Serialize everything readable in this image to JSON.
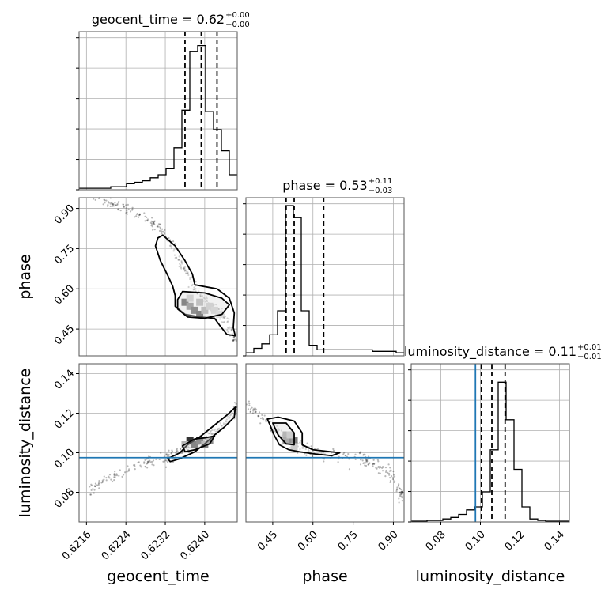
{
  "chart_data": {
    "type": "corner",
    "parameters": [
      {
        "name": "geocent_time",
        "axis_label": "geocent_time",
        "title": {
          "main": "geocent_time = 0.62",
          "sup": "+0.00",
          "sub": "−0.00"
        },
        "range": [
          0.62145,
          0.62466
        ],
        "ticks": [
          0.6216,
          0.6224,
          0.6232,
          0.624
        ],
        "tick_labels": [
          "0.6216",
          "0.6224",
          "0.6232",
          "0.6240"
        ],
        "quantiles": [
          0.6236,
          0.62393,
          0.62425
        ],
        "truth": null,
        "hist_max": 1.0,
        "hist": [
          0.01,
          0.01,
          0.01,
          0.01,
          0.02,
          0.02,
          0.04,
          0.05,
          0.06,
          0.08,
          0.1,
          0.14,
          0.28,
          0.53,
          0.92,
          0.96,
          0.52,
          0.4,
          0.26,
          0.1
        ]
      },
      {
        "name": "phase",
        "axis_label": "phase",
        "title": {
          "main": "phase = 0.53",
          "sup": "+0.11",
          "sub": "−0.03"
        },
        "range": [
          0.35,
          0.94
        ],
        "ticks": [
          0.45,
          0.6,
          0.75,
          0.9
        ],
        "tick_labels": [
          "0.45",
          "0.60",
          "0.75",
          "0.90"
        ],
        "quantiles": [
          0.5,
          0.53,
          0.64
        ],
        "truth": null,
        "hist_max": 1.0,
        "hist": [
          0.02,
          0.05,
          0.08,
          0.14,
          0.3,
          1.0,
          0.92,
          0.3,
          0.07,
          0.04,
          0.04,
          0.04,
          0.04,
          0.04,
          0.04,
          0.04,
          0.03,
          0.03,
          0.03,
          0.02
        ]
      },
      {
        "name": "luminosity_distance",
        "axis_label": "luminosity_distance",
        "title": {
          "main": "luminosity_distance = 0.11",
          "sup": "+0.01",
          "sub": "−0.01"
        },
        "range": [
          0.065,
          0.145
        ],
        "ticks": [
          0.08,
          0.1,
          0.12,
          0.14
        ],
        "tick_labels": [
          "0.08",
          "0.10",
          "0.12",
          "0.14"
        ],
        "quantiles": [
          0.1005,
          0.1058,
          0.1125
        ],
        "truth": 0.0975,
        "hist_max": 1.0,
        "hist": [
          0.005,
          0.005,
          0.01,
          0.01,
          0.02,
          0.03,
          0.05,
          0.08,
          0.1,
          0.2,
          0.48,
          0.93,
          0.68,
          0.35,
          0.1,
          0.02,
          0.01,
          0.005,
          0.005,
          0.005
        ]
      }
    ],
    "pairs": [
      {
        "x": "geocent_time",
        "y": "phase",
        "ridge": [
          [
            0.62175,
            0.94
          ],
          [
            0.62205,
            0.925
          ],
          [
            0.6222,
            0.91
          ],
          [
            0.6225,
            0.89
          ],
          [
            0.6228,
            0.865
          ],
          [
            0.623,
            0.84
          ],
          [
            0.62315,
            0.81
          ],
          [
            0.6233,
            0.77
          ],
          [
            0.62345,
            0.72
          ],
          [
            0.6236,
            0.67
          ],
          [
            0.62375,
            0.62
          ],
          [
            0.62395,
            0.57
          ],
          [
            0.6242,
            0.53
          ],
          [
            0.6244,
            0.49
          ],
          [
            0.62455,
            0.44
          ],
          [
            0.62463,
            0.4
          ]
        ],
        "spread": 0.018,
        "contour_outer": [
          [
            0.62315,
            0.8
          ],
          [
            0.6234,
            0.76
          ],
          [
            0.6236,
            0.705
          ],
          [
            0.62375,
            0.655
          ],
          [
            0.6238,
            0.615
          ],
          [
            0.62425,
            0.6
          ],
          [
            0.6245,
            0.565
          ],
          [
            0.6246,
            0.51
          ],
          [
            0.62458,
            0.455
          ],
          [
            0.62462,
            0.425
          ],
          [
            0.62445,
            0.43
          ],
          [
            0.6243,
            0.465
          ],
          [
            0.6242,
            0.49
          ],
          [
            0.6239,
            0.495
          ],
          [
            0.6236,
            0.505
          ],
          [
            0.6234,
            0.535
          ],
          [
            0.6234,
            0.575
          ],
          [
            0.62335,
            0.61
          ],
          [
            0.62325,
            0.65
          ],
          [
            0.6231,
            0.705
          ],
          [
            0.623,
            0.76
          ],
          [
            0.62305,
            0.79
          ]
        ],
        "contour_inner": [
          [
            0.62355,
            0.59
          ],
          [
            0.624,
            0.585
          ],
          [
            0.62435,
            0.565
          ],
          [
            0.6245,
            0.54
          ],
          [
            0.62435,
            0.505
          ],
          [
            0.624,
            0.49
          ],
          [
            0.62365,
            0.495
          ],
          [
            0.62345,
            0.525
          ],
          [
            0.62345,
            0.56
          ]
        ],
        "density_cells": [
          [
            0.6236,
            0.55,
            1.0
          ],
          [
            0.6237,
            0.535,
            0.7
          ],
          [
            0.6238,
            0.52,
            0.9
          ],
          [
            0.6239,
            0.505,
            1.0
          ],
          [
            0.624,
            0.52,
            0.5
          ],
          [
            0.6241,
            0.535,
            0.3
          ],
          [
            0.6242,
            0.52,
            0.25
          ],
          [
            0.6237,
            0.565,
            0.3
          ],
          [
            0.6239,
            0.55,
            0.45
          ],
          [
            0.6243,
            0.505,
            0.2
          ]
        ],
        "truth_x": null,
        "truth_y": null
      },
      {
        "x": "geocent_time",
        "y": "luminosity_distance",
        "ridge": [
          [
            0.62165,
            0.081
          ],
          [
            0.6219,
            0.085
          ],
          [
            0.6222,
            0.089
          ],
          [
            0.6225,
            0.0925
          ],
          [
            0.6228,
            0.095
          ],
          [
            0.6231,
            0.097
          ],
          [
            0.6233,
            0.0985
          ],
          [
            0.6235,
            0.1005
          ],
          [
            0.6237,
            0.103
          ],
          [
            0.6239,
            0.106
          ],
          [
            0.6241,
            0.109
          ],
          [
            0.6243,
            0.113
          ],
          [
            0.62455,
            0.118
          ],
          [
            0.62465,
            0.124
          ]
        ],
        "spread": 0.0022,
        "contour_outer": [
          [
            0.62325,
            0.097
          ],
          [
            0.6235,
            0.1
          ],
          [
            0.62365,
            0.104
          ],
          [
            0.6239,
            0.108
          ],
          [
            0.6242,
            0.114
          ],
          [
            0.62445,
            0.119
          ],
          [
            0.62462,
            0.123
          ],
          [
            0.6246,
            0.118
          ],
          [
            0.6244,
            0.113
          ],
          [
            0.6242,
            0.109
          ],
          [
            0.624,
            0.1045
          ],
          [
            0.6238,
            0.1005
          ],
          [
            0.6235,
            0.097
          ],
          [
            0.6233,
            0.0955
          ]
        ],
        "contour_inner": [
          [
            0.62355,
            0.1035
          ],
          [
            0.6238,
            0.107
          ],
          [
            0.624,
            0.1075
          ],
          [
            0.6242,
            0.1085
          ],
          [
            0.6241,
            0.1045
          ],
          [
            0.6238,
            0.1015
          ],
          [
            0.6236,
            0.1005
          ]
        ],
        "density_cells": [
          [
            0.6237,
            0.106,
            0.8
          ],
          [
            0.6238,
            0.104,
            1.0
          ],
          [
            0.6239,
            0.106,
            0.9
          ],
          [
            0.624,
            0.104,
            0.5
          ],
          [
            0.6241,
            0.106,
            0.45
          ],
          [
            0.6236,
            0.104,
            0.3
          ]
        ],
        "truth_x": null,
        "truth_y": 0.0975
      },
      {
        "x": "phase",
        "y": "luminosity_distance",
        "ridge": [
          [
            0.36,
            0.124
          ],
          [
            0.4,
            0.119
          ],
          [
            0.44,
            0.114
          ],
          [
            0.48,
            0.109
          ],
          [
            0.52,
            0.106
          ],
          [
            0.56,
            0.103
          ],
          [
            0.6,
            0.1005
          ],
          [
            0.66,
            0.099
          ],
          [
            0.72,
            0.0978
          ],
          [
            0.78,
            0.0965
          ],
          [
            0.83,
            0.094
          ],
          [
            0.87,
            0.091
          ],
          [
            0.9,
            0.087
          ],
          [
            0.925,
            0.081
          ],
          [
            0.935,
            0.077
          ]
        ],
        "spread": 0.003,
        "contour_outer": [
          [
            0.43,
            0.117
          ],
          [
            0.47,
            0.118
          ],
          [
            0.53,
            0.116
          ],
          [
            0.56,
            0.11
          ],
          [
            0.56,
            0.104
          ],
          [
            0.6,
            0.1015
          ],
          [
            0.7,
            0.1
          ],
          [
            0.67,
            0.0985
          ],
          [
            0.6,
            0.0995
          ],
          [
            0.55,
            0.1005
          ],
          [
            0.51,
            0.1015
          ],
          [
            0.475,
            0.104
          ],
          [
            0.455,
            0.109
          ],
          [
            0.44,
            0.114
          ]
        ],
        "contour_inner": [
          [
            0.45,
            0.115
          ],
          [
            0.5,
            0.115
          ],
          [
            0.53,
            0.11
          ],
          [
            0.53,
            0.104
          ],
          [
            0.5,
            0.1045
          ],
          [
            0.47,
            0.109
          ]
        ],
        "density_cells": [
          [
            0.5,
            0.109,
            0.55
          ],
          [
            0.515,
            0.106,
            1.0
          ],
          [
            0.53,
            0.106,
            0.8
          ],
          [
            0.5,
            0.106,
            0.65
          ],
          [
            0.515,
            0.109,
            0.35
          ],
          [
            0.53,
            0.103,
            0.3
          ]
        ],
        "truth_x": null,
        "truth_y": 0.0975
      }
    ],
    "truth_color": "#1f77b4",
    "grid": true
  }
}
